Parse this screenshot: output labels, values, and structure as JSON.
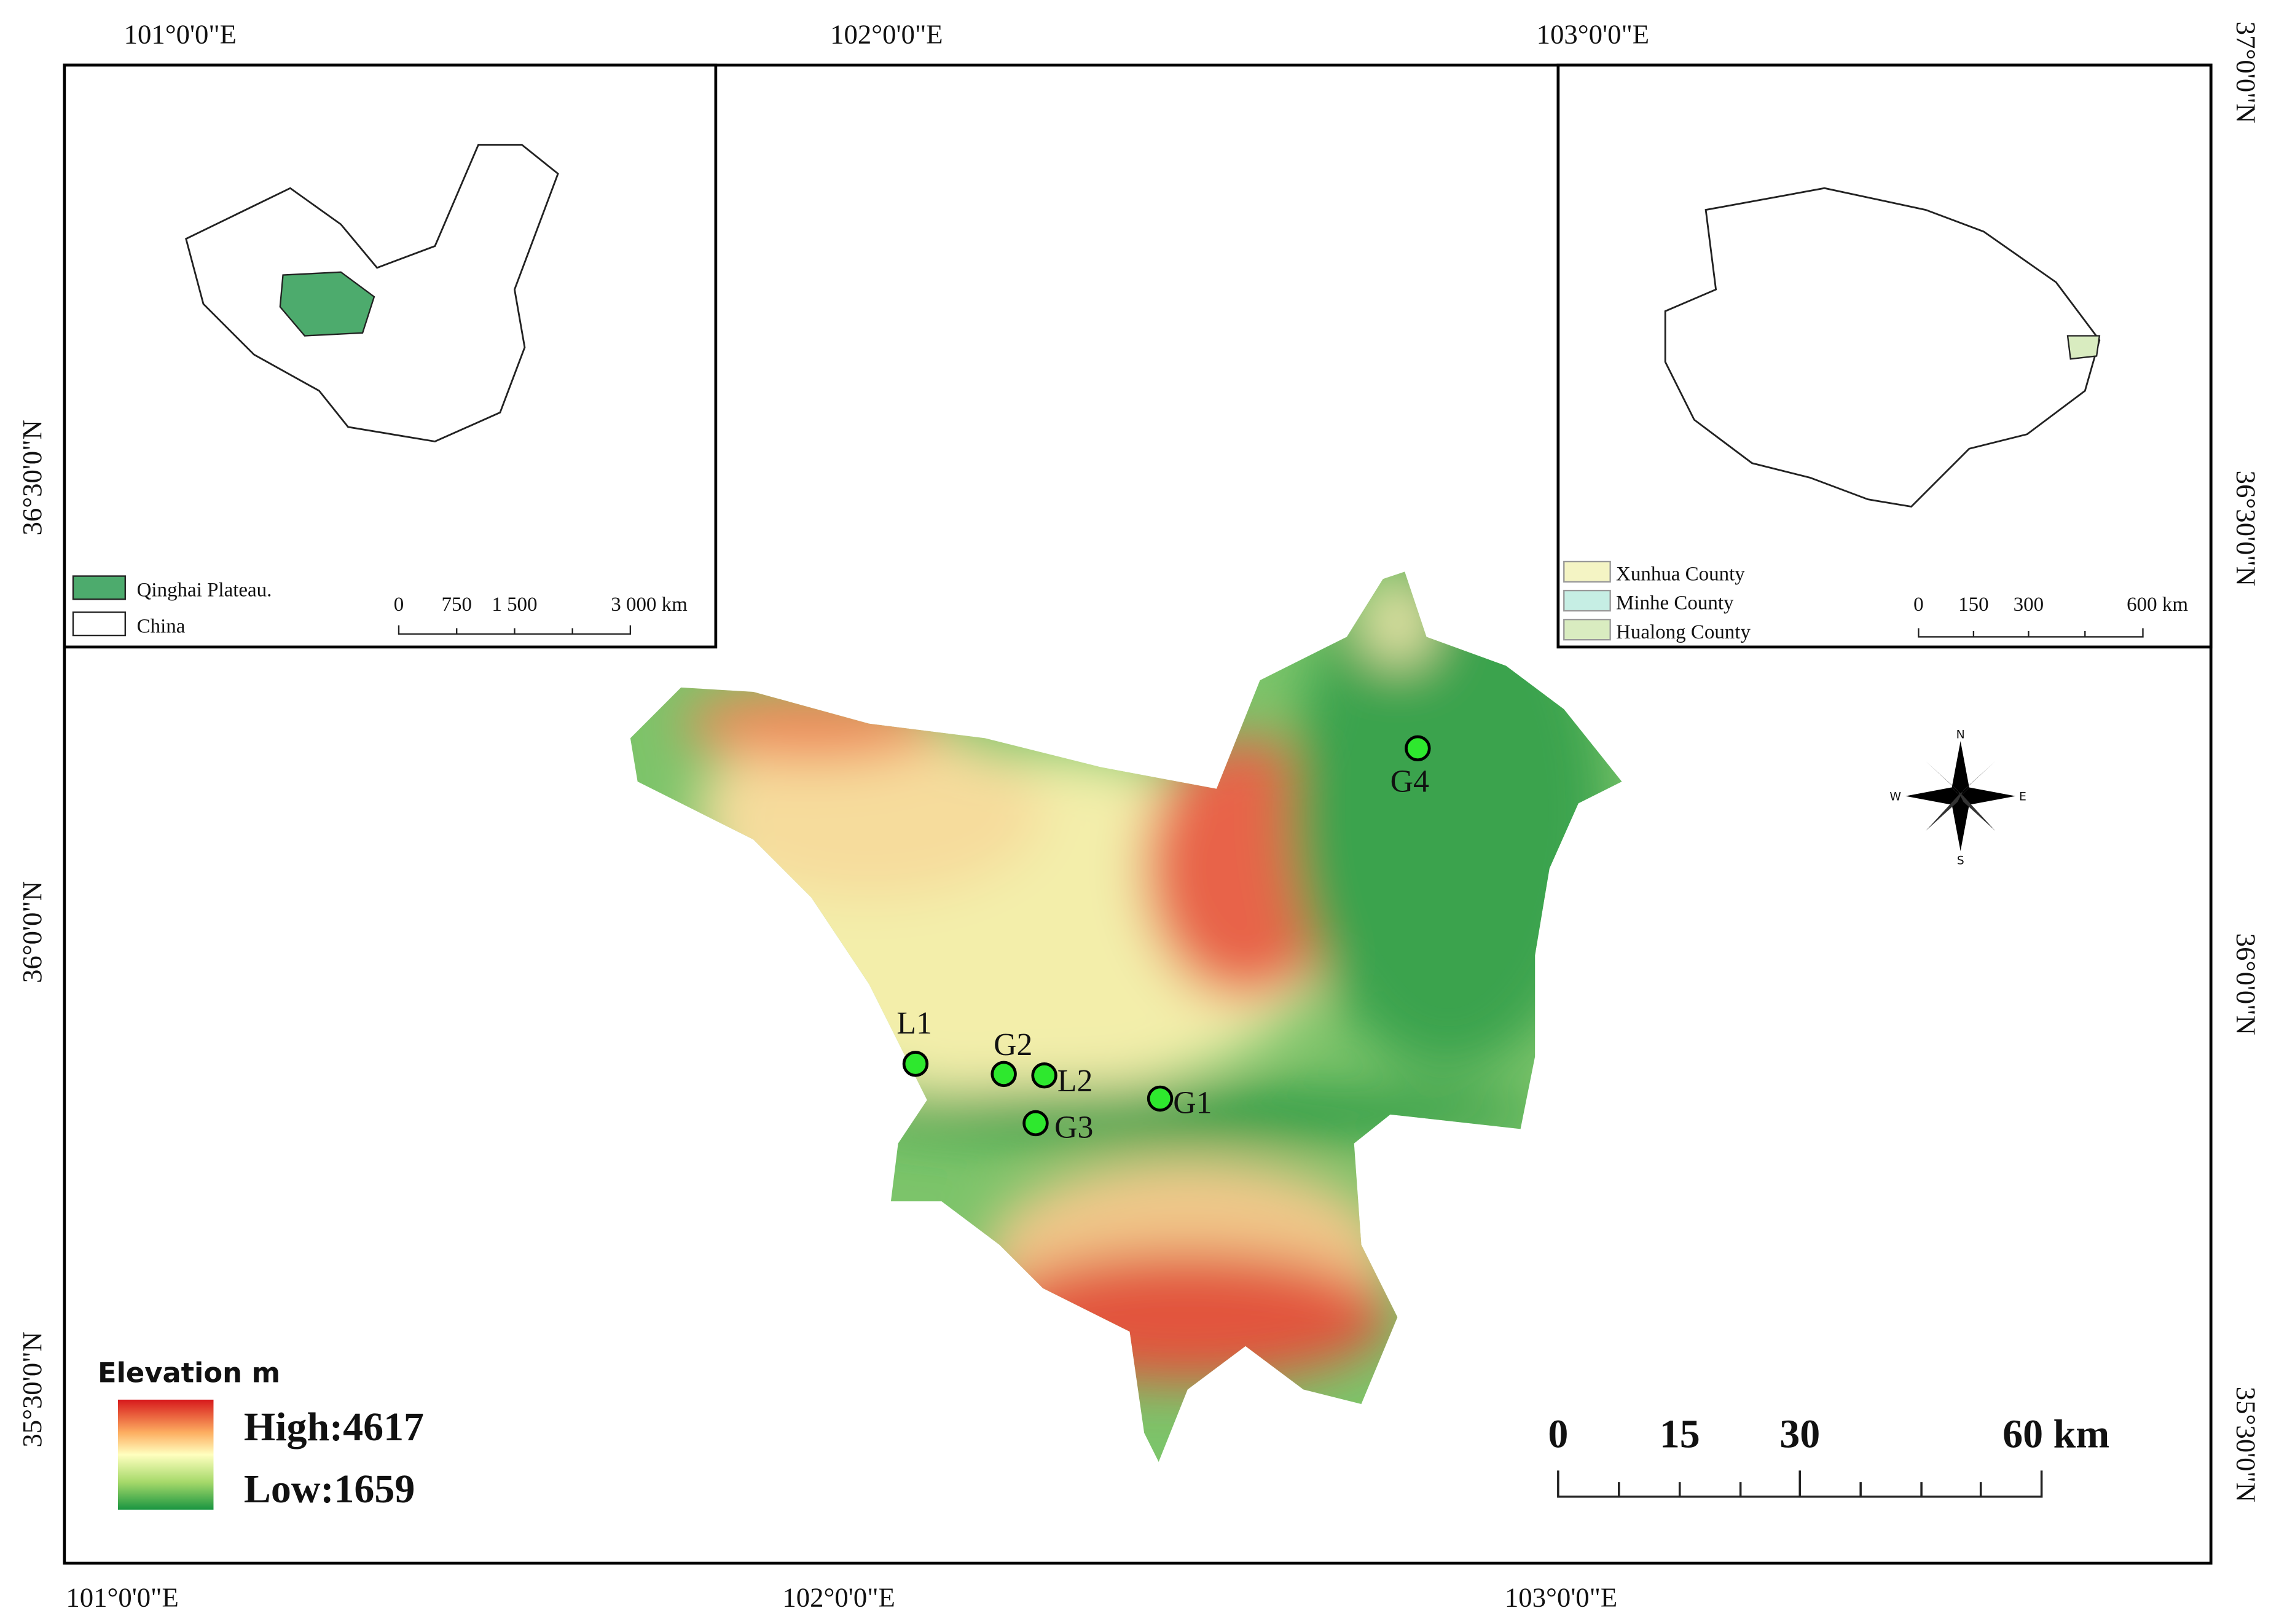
{
  "top_labels": [
    "101°0'0\"E",
    "102°0'0\"E",
    "103°0'0\"E"
  ],
  "bottom_labels": [
    "101°0'0\"E",
    "102°0'0\"E",
    "103°0'0\"E"
  ],
  "left_labels": [
    "36°30'0\"N",
    "36°0'0\"N",
    "35°30'0\"N"
  ],
  "right_labels": [
    "37°0'0\"N",
    "36°30'0\"N",
    "36°0'0\"N",
    "35°30'0\"N"
  ],
  "inset_china": {
    "legend": [
      "Qinghai Plateau.",
      "China"
    ],
    "scale": [
      "0",
      "750",
      "1 500",
      "3 000 km"
    ]
  },
  "inset_qinghai": {
    "legend": [
      "Xunhua County",
      "Minhe County",
      "Hualong  County"
    ],
    "scale": [
      "0",
      "150",
      "300",
      "600 km"
    ]
  },
  "elevation": {
    "title": "Elevation m",
    "high": "High:4617",
    "low": "Low:1659"
  },
  "scale": [
    "0",
    "15",
    "30",
    "60 km"
  ],
  "compass": {
    "n": "N",
    "s": "S",
    "w": "W",
    "e": "E"
  },
  "sites": [
    "L1",
    "G2",
    "L2",
    "G1",
    "G3",
    "G4"
  ]
}
